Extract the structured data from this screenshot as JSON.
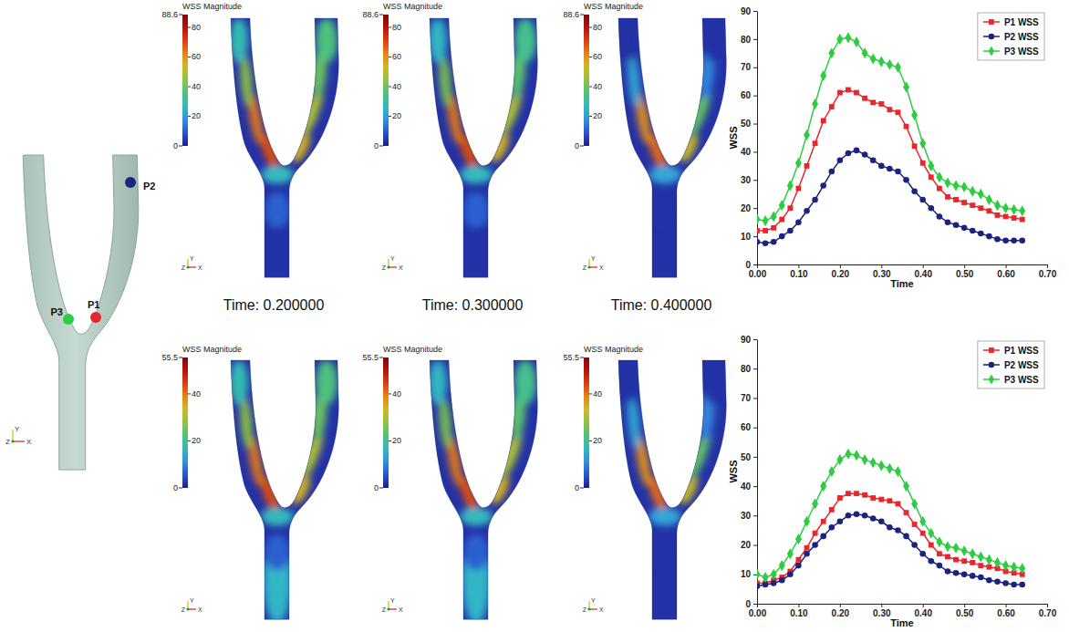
{
  "geometry": {
    "point_labels": [
      "P1",
      "P2",
      "P3"
    ],
    "triad_labels": [
      "Y",
      "Z",
      "X"
    ]
  },
  "renderings": {
    "time_labels": [
      "Time: 0.200000",
      "Time: 0.300000",
      "Time: 0.400000"
    ],
    "rows": [
      {
        "colorbar": {
          "title": "WSS Magnitude",
          "range": [
            0,
            88.6
          ],
          "ticks": [
            0,
            20,
            40,
            60,
            80,
            88.6
          ]
        }
      },
      {
        "colorbar": {
          "title": "WSS Magnitude",
          "range": [
            0,
            55.5
          ],
          "ticks": [
            0,
            20,
            40,
            55.5
          ]
        }
      }
    ]
  },
  "chart_data": [
    {
      "type": "line",
      "xlabel": "Time",
      "ylabel": "WSS",
      "x": [
        0,
        0.02,
        0.04,
        0.06,
        0.08,
        0.1,
        0.12,
        0.14,
        0.16,
        0.18,
        0.2,
        0.22,
        0.24,
        0.26,
        0.28,
        0.3,
        0.32,
        0.34,
        0.36,
        0.38,
        0.4,
        0.42,
        0.44,
        0.46,
        0.48,
        0.5,
        0.52,
        0.54,
        0.56,
        0.58,
        0.6,
        0.62,
        0.64
      ],
      "xlim": [
        0,
        0.7
      ],
      "xticks": [
        {
          "value": 0,
          "label": "0.00"
        },
        {
          "value": 0.1,
          "label": "0.10"
        },
        {
          "value": 0.2,
          "label": "0.20"
        },
        {
          "value": 0.3,
          "label": "0.30"
        },
        {
          "value": 0.4,
          "label": "0.40"
        },
        {
          "value": 0.5,
          "label": "0.50"
        },
        {
          "value": 0.6,
          "label": "0.60"
        },
        {
          "value": 0.7,
          "label": "0.70"
        }
      ],
      "ylim": [
        0,
        90
      ],
      "yticks": [
        0,
        10,
        20,
        30,
        40,
        50,
        60,
        70,
        80,
        90
      ],
      "grid": false,
      "legend": "upper right",
      "series": [
        {
          "name": "P1 WSS",
          "color": "#e8262b",
          "marker": "square",
          "values": [
            12,
            12,
            13,
            16,
            20,
            27,
            35,
            43,
            51,
            56,
            61,
            62,
            61,
            59,
            57.5,
            57,
            55,
            54,
            49,
            42,
            36,
            31,
            27,
            24,
            23,
            22,
            21,
            20,
            19,
            17.5,
            17,
            16.5,
            16
          ]
        },
        {
          "name": "P2 WSS",
          "color": "#1a237e",
          "marker": "circle",
          "values": [
            8,
            7.5,
            8,
            10,
            12,
            15,
            19,
            23,
            28,
            33,
            37,
            39.5,
            40.5,
            39,
            37,
            35,
            34,
            33,
            30,
            26,
            23,
            20,
            17,
            15,
            14,
            13,
            12,
            11,
            10,
            9,
            8.5,
            8.5,
            8.5
          ]
        },
        {
          "name": "P3 WSS",
          "color": "#2ecc40",
          "marker": "diamond",
          "values": [
            16,
            15.5,
            17,
            21,
            28,
            36,
            46,
            57,
            67,
            75,
            80,
            80.5,
            79,
            75,
            73,
            72,
            71,
            70,
            63,
            53,
            43,
            35,
            31,
            29,
            28,
            27.5,
            26,
            25,
            23,
            21,
            20,
            19.5,
            19
          ]
        }
      ]
    },
    {
      "type": "line",
      "xlabel": "Time",
      "ylabel": "WSS",
      "x": [
        0,
        0.02,
        0.04,
        0.06,
        0.08,
        0.1,
        0.12,
        0.14,
        0.16,
        0.18,
        0.2,
        0.22,
        0.24,
        0.26,
        0.28,
        0.3,
        0.32,
        0.34,
        0.36,
        0.38,
        0.4,
        0.42,
        0.44,
        0.46,
        0.48,
        0.5,
        0.52,
        0.54,
        0.56,
        0.58,
        0.6,
        0.62,
        0.64
      ],
      "xlim": [
        0,
        0.7
      ],
      "xticks": [
        {
          "value": 0,
          "label": "0.00"
        },
        {
          "value": 0.1,
          "label": "0.10"
        },
        {
          "value": 0.2,
          "label": "0.20"
        },
        {
          "value": 0.3,
          "label": "0.30"
        },
        {
          "value": 0.4,
          "label": "0.40"
        },
        {
          "value": 0.5,
          "label": "0.50"
        },
        {
          "value": 0.6,
          "label": "0.60"
        },
        {
          "value": 0.7,
          "label": "0.70"
        }
      ],
      "ylim": [
        0,
        90
      ],
      "yticks": [
        0,
        10,
        20,
        30,
        40,
        50,
        60,
        70,
        80,
        90
      ],
      "grid": false,
      "legend": "upper right",
      "series": [
        {
          "name": "P1 WSS",
          "color": "#e8262b",
          "marker": "square",
          "values": [
            7,
            7,
            8,
            9,
            11,
            15,
            19,
            24,
            28,
            32,
            36,
            37.5,
            37.5,
            37,
            36,
            35.5,
            35,
            34,
            31,
            27,
            24,
            20,
            17,
            16,
            15,
            14.5,
            14,
            13,
            12.5,
            12,
            11,
            10.5,
            10
          ]
        },
        {
          "name": "P2 WSS",
          "color": "#1a237e",
          "marker": "circle",
          "values": [
            6,
            6.5,
            7,
            8,
            10,
            13,
            17,
            20,
            23,
            26,
            28,
            30,
            30.5,
            30,
            29,
            28,
            26,
            25,
            23,
            20,
            17,
            14.5,
            13,
            11,
            10.5,
            10,
            9.5,
            9,
            8,
            7.5,
            7,
            6.5,
            6.5
          ]
        },
        {
          "name": "P3 WSS",
          "color": "#2ecc40",
          "marker": "diamond",
          "values": [
            10,
            9,
            10,
            13,
            17,
            22,
            28,
            34,
            40,
            45,
            49,
            51,
            50.5,
            49,
            48,
            47,
            46,
            45,
            40,
            34,
            28,
            24,
            21,
            19.5,
            19,
            18,
            17,
            16,
            15,
            14,
            13,
            12.5,
            12
          ]
        }
      ]
    }
  ]
}
